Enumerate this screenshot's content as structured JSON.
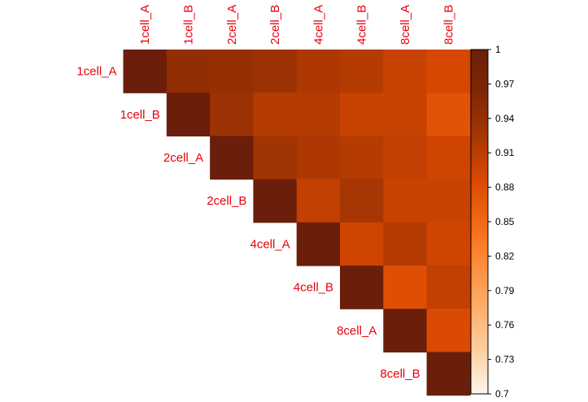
{
  "chart_data": {
    "type": "heatmap",
    "layout": "upper-triangle",
    "labels": [
      "1cell_A",
      "1cell_B",
      "2cell_A",
      "2cell_B",
      "4cell_A",
      "4cell_B",
      "8cell_A",
      "8cell_B"
    ],
    "matrix": [
      [
        1.0,
        0.945,
        0.94,
        0.935,
        0.92,
        0.915,
        0.9,
        0.89
      ],
      [
        null,
        1.0,
        0.935,
        0.915,
        0.915,
        0.9,
        0.9,
        0.875
      ],
      [
        null,
        null,
        1.0,
        0.93,
        0.92,
        0.915,
        0.905,
        0.895
      ],
      [
        null,
        null,
        null,
        1.0,
        0.905,
        0.925,
        0.9,
        0.9
      ],
      [
        null,
        null,
        null,
        null,
        1.0,
        0.895,
        0.915,
        0.895
      ],
      [
        null,
        null,
        null,
        null,
        null,
        1.0,
        0.88,
        0.905
      ],
      [
        null,
        null,
        null,
        null,
        null,
        null,
        1.0,
        0.885
      ],
      [
        null,
        null,
        null,
        null,
        null,
        null,
        null,
        1.0
      ]
    ],
    "colorbar": {
      "min": 0.7,
      "max": 1,
      "ticks": [
        "1",
        "0.97",
        "0.94",
        "0.91",
        "0.88",
        "0.85",
        "0.82",
        "0.79",
        "0.76",
        "0.73",
        "0.7"
      ],
      "colors": [
        "#fff5eb",
        "#fdd0a2",
        "#fdae6b",
        "#fd8d3c",
        "#f16913",
        "#d94801",
        "#a63603",
        "#7f2704",
        "#6b1e0a"
      ]
    },
    "label_color": "#e8000b"
  }
}
